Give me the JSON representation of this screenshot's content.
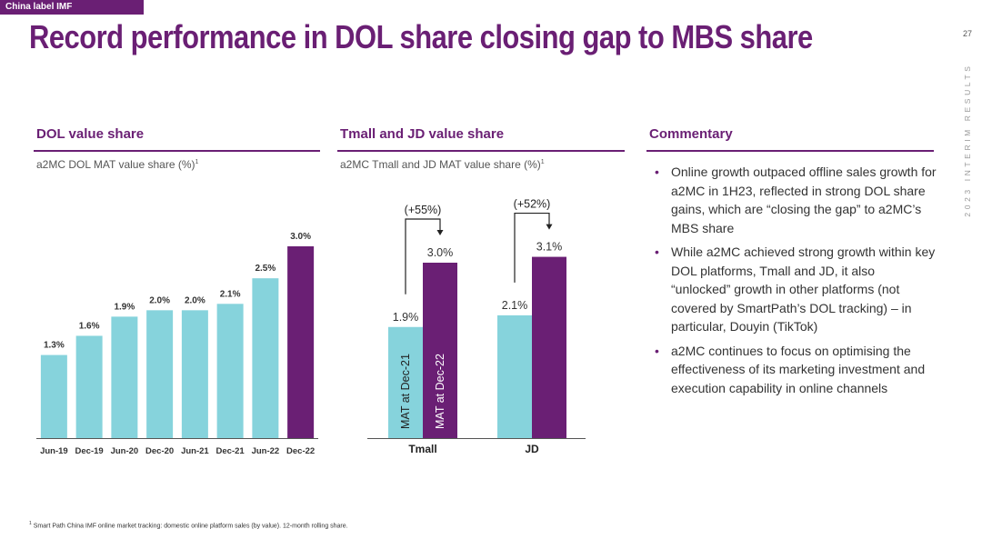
{
  "tag_label": "China label IMF",
  "title": "Record performance in DOL share closing gap to MBS share",
  "page_number": "27",
  "side_label": "2023 INTERIM RESULTS",
  "colors": {
    "accent": "#6a1f74",
    "light": "#86d3dc",
    "dark": "#6a1f74"
  },
  "dol": {
    "heading": "DOL value share",
    "subtitle": "a2MC DOL MAT value share (%)",
    "subtitle_sup": "1"
  },
  "tmall_jd": {
    "heading": "Tmall and JD value share",
    "subtitle": "a2MC Tmall and JD MAT value share (%)",
    "subtitle_sup": "1"
  },
  "commentary": {
    "heading": "Commentary",
    "bullets": [
      "Online growth outpaced offline sales growth for a2MC in 1H23, reflected in strong DOL share gains, which are “closing the gap” to a2MC’s MBS share",
      "While a2MC achieved strong growth within key DOL platforms, Tmall and JD, it also “unlocked” growth in other platforms (not covered by SmartPath’s DOL tracking) – in particular, Douyin (TikTok)",
      "a2MC continues to focus on optimising the effectiveness of its marketing investment and execution capability in online channels"
    ]
  },
  "footnote": {
    "sup": "1",
    "text": "Smart Path China IMF online market tracking: domestic online platform sales (by value). 12-month rolling share."
  },
  "chart_data": [
    {
      "type": "bar",
      "title": "DOL value share",
      "ylabel": "a2MC DOL MAT value share (%)",
      "categories": [
        "Jun-19",
        "Dec-19",
        "Jun-20",
        "Dec-20",
        "Jun-21",
        "Dec-21",
        "Jun-22",
        "Dec-22"
      ],
      "values": [
        1.3,
        1.6,
        1.9,
        2.0,
        2.0,
        2.1,
        2.5,
        3.0
      ],
      "labels": [
        "1.3%",
        "1.6%",
        "1.9%",
        "2.0%",
        "2.0%",
        "2.1%",
        "2.5%",
        "3.0%"
      ],
      "highlight_last": true,
      "ylim": [
        0,
        3.0
      ]
    },
    {
      "type": "bar",
      "title": "Tmall and JD value share",
      "ylabel": "a2MC Tmall and JD MAT value share (%)",
      "categories": [
        "Tmall",
        "JD"
      ],
      "series": [
        {
          "name": "MAT at Dec-21",
          "values": [
            1.9,
            2.1
          ],
          "labels": [
            "1.9%",
            "2.1%"
          ]
        },
        {
          "name": "MAT at Dec-22",
          "values": [
            3.0,
            3.1
          ],
          "labels": [
            "3.0%",
            "3.1%"
          ]
        }
      ],
      "growth_labels": [
        "(+55%)",
        "(+52%)"
      ],
      "ylim": [
        0,
        3.1
      ]
    }
  ]
}
